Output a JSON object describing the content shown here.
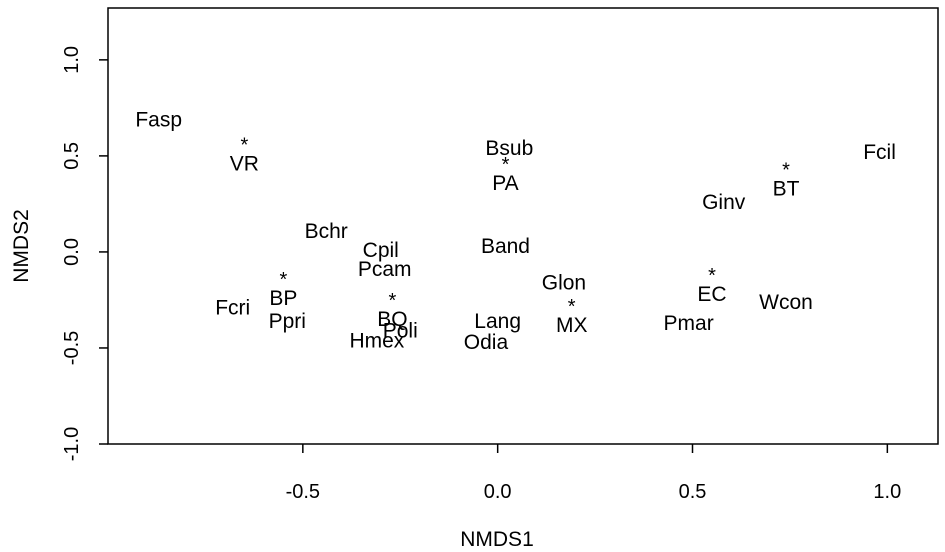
{
  "chart_data": {
    "type": "scatter",
    "title": "",
    "xlabel": "NMDS1",
    "ylabel": "NMDS2",
    "xlim": [
      -1.0,
      1.13
    ],
    "ylim": [
      -1.0,
      1.27
    ],
    "x_ticks": [
      -0.5,
      0.0,
      0.5,
      1.0
    ],
    "x_tick_labels": [
      "-0.5",
      "0.0",
      "0.5",
      "1.0"
    ],
    "y_ticks": [
      -1.0,
      -0.5,
      0.0,
      0.5,
      1.0
    ],
    "y_tick_labels": [
      "-1.0",
      "-0.5",
      "0.0",
      "0.5",
      "1.0"
    ],
    "grid": false,
    "series": [
      {
        "points": [
          {
            "label": "Fasp",
            "x": -0.87,
            "y": 0.69
          },
          {
            "label": "Bsub",
            "x": 0.03,
            "y": 0.54
          },
          {
            "label": "Fcil",
            "x": 0.98,
            "y": 0.52
          },
          {
            "label": "Ginv",
            "x": 0.58,
            "y": 0.26
          },
          {
            "label": "Bchr",
            "x": -0.44,
            "y": 0.11
          },
          {
            "label": "Band",
            "x": 0.02,
            "y": 0.03
          },
          {
            "label": "Cpil",
            "x": -0.3,
            "y": 0.01
          },
          {
            "label": "Pcam",
            "x": -0.29,
            "y": -0.09
          },
          {
            "label": "Glon",
            "x": 0.17,
            "y": -0.16
          },
          {
            "label": "Fcri",
            "x": -0.68,
            "y": -0.29
          },
          {
            "label": "Wcon",
            "x": 0.74,
            "y": -0.26
          },
          {
            "label": "Ppri",
            "x": -0.54,
            "y": -0.36
          },
          {
            "label": "Lang",
            "x": 0.0,
            "y": -0.36
          },
          {
            "label": "Pmar",
            "x": 0.49,
            "y": -0.37
          },
          {
            "label": "Poli",
            "x": -0.25,
            "y": -0.41
          },
          {
            "label": "Hmex",
            "x": -0.31,
            "y": -0.46
          },
          {
            "label": "Odia",
            "x": -0.03,
            "y": -0.47
          }
        ]
      },
      {
        "points": [
          {
            "label": "VR",
            "x": -0.65,
            "y": 0.46,
            "marker": "*"
          },
          {
            "label": "PA",
            "x": 0.02,
            "y": 0.36,
            "marker": "*"
          },
          {
            "label": "BT",
            "x": 0.74,
            "y": 0.33,
            "marker": "*"
          },
          {
            "label": "BP",
            "x": -0.55,
            "y": -0.24,
            "marker": "*"
          },
          {
            "label": "EC",
            "x": 0.55,
            "y": -0.22,
            "marker": "*"
          },
          {
            "label": "BQ",
            "x": -0.27,
            "y": -0.35,
            "marker": "*"
          },
          {
            "label": "MX",
            "x": 0.19,
            "y": -0.38,
            "marker": "*"
          }
        ]
      }
    ]
  }
}
